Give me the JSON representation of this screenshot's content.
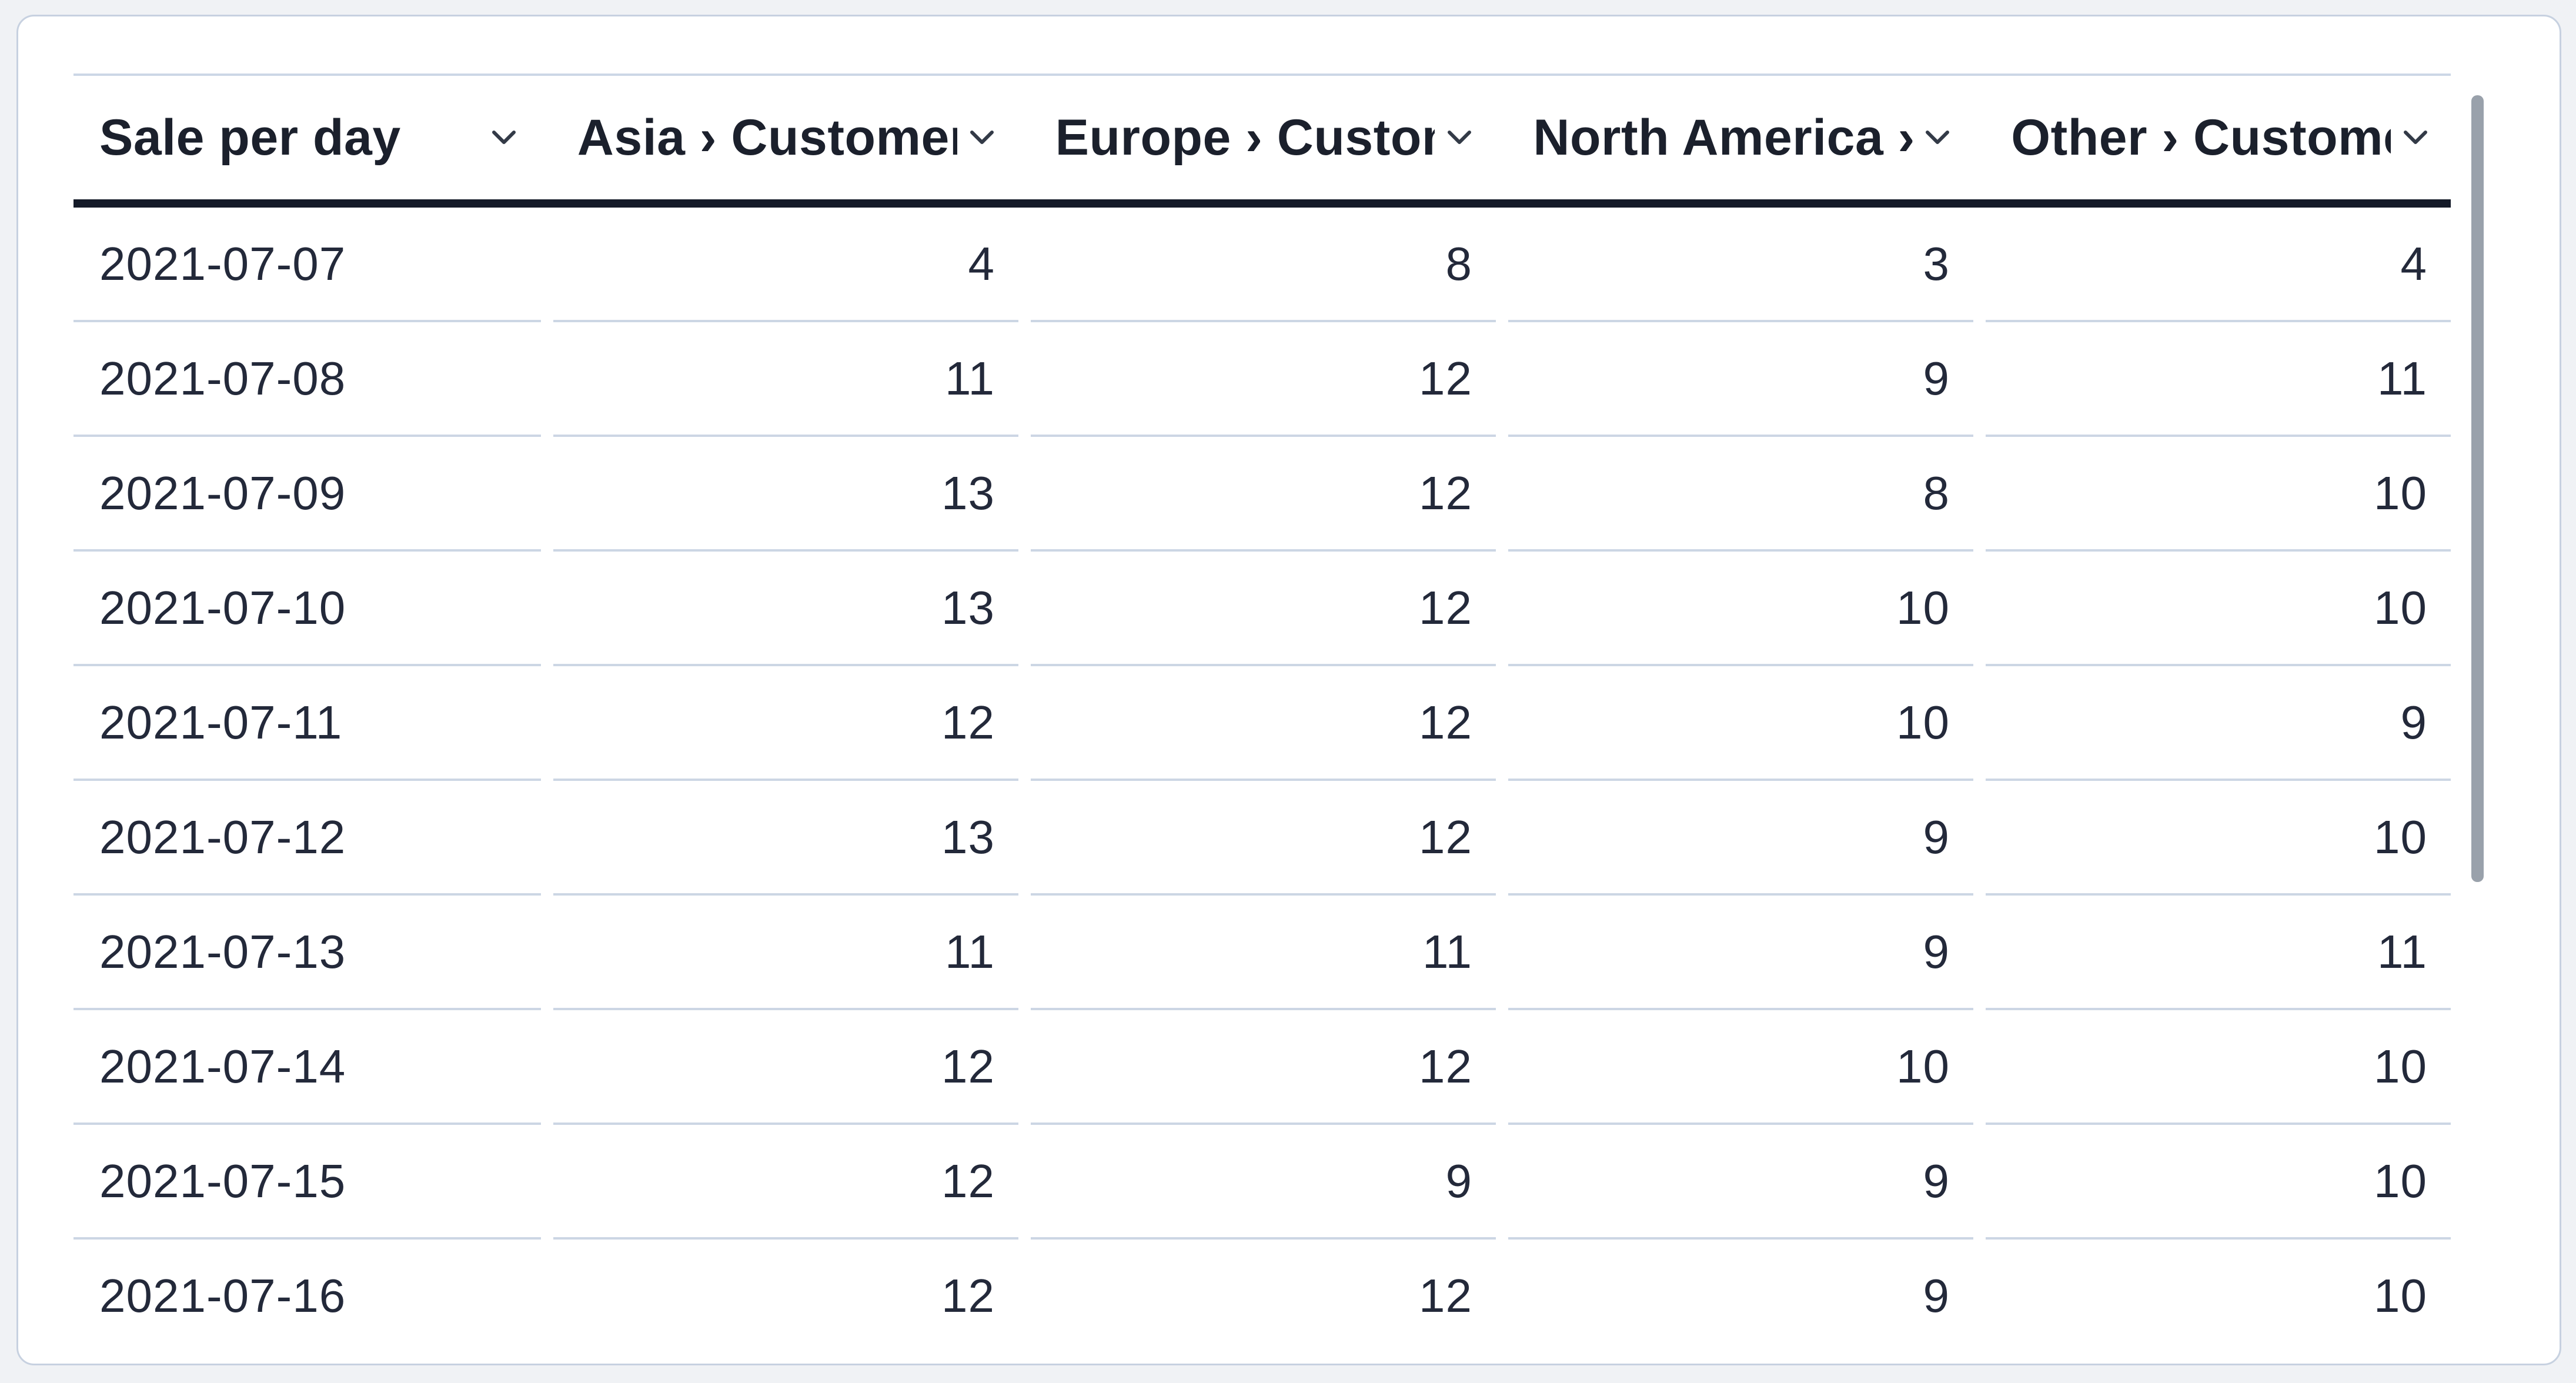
{
  "card": {
    "columns": [
      {
        "key": "sale-per-day",
        "label": "Sale per day",
        "align": "left"
      },
      {
        "key": "asia-customers",
        "label": "Asia › Customers",
        "align": "right"
      },
      {
        "key": "europe-customers",
        "label": "Europe › Customers",
        "align": "right"
      },
      {
        "key": "north-america-customers",
        "label": "North America › Customers",
        "align": "right"
      },
      {
        "key": "other-customers",
        "label": "Other › Customers",
        "align": "right"
      }
    ],
    "rows": [
      [
        "2021-07-07",
        4,
        8,
        3,
        4
      ],
      [
        "2021-07-08",
        11,
        12,
        9,
        11
      ],
      [
        "2021-07-09",
        13,
        12,
        8,
        10
      ],
      [
        "2021-07-10",
        13,
        12,
        10,
        10
      ],
      [
        "2021-07-11",
        12,
        12,
        10,
        9
      ],
      [
        "2021-07-12",
        13,
        12,
        9,
        10
      ],
      [
        "2021-07-13",
        11,
        11,
        9,
        11
      ],
      [
        "2021-07-14",
        12,
        12,
        10,
        10
      ],
      [
        "2021-07-15",
        12,
        9,
        9,
        10
      ],
      [
        "2021-07-16",
        12,
        12,
        9,
        10
      ]
    ],
    "scrollbar": {
      "orientation": "vertical"
    }
  },
  "icons": {
    "header_menu": "chevron-down-icon"
  },
  "colors": {
    "page_bg": "#f0f2f5",
    "card_bg": "#ffffff",
    "card_border": "#c7d1e0",
    "divider": "#ccd6e4",
    "header_rule": "#141a28",
    "header_text": "#1b202c",
    "cell_text": "#23293a",
    "scrollbar_thumb": "#99a1ab"
  }
}
